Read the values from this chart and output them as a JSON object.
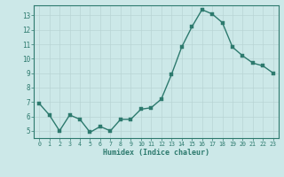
{
  "x": [
    0,
    1,
    2,
    3,
    4,
    5,
    6,
    7,
    8,
    9,
    10,
    11,
    12,
    13,
    14,
    15,
    16,
    17,
    18,
    19,
    20,
    21,
    22,
    23
  ],
  "y": [
    6.9,
    6.1,
    5.0,
    6.1,
    5.8,
    4.9,
    5.3,
    5.0,
    5.8,
    5.8,
    6.5,
    6.6,
    7.2,
    8.9,
    10.8,
    12.2,
    13.4,
    13.1,
    12.5,
    10.8,
    10.2,
    9.7,
    9.5,
    9.0
  ],
  "xlabel": "Humidex (Indice chaleur)",
  "xlim": [
    -0.5,
    23.5
  ],
  "ylim": [
    4.5,
    13.7
  ],
  "yticks": [
    5,
    6,
    7,
    8,
    9,
    10,
    11,
    12,
    13
  ],
  "xticks": [
    0,
    1,
    2,
    3,
    4,
    5,
    6,
    7,
    8,
    9,
    10,
    11,
    12,
    13,
    14,
    15,
    16,
    17,
    18,
    19,
    20,
    21,
    22,
    23
  ],
  "line_color": "#2d7a6e",
  "marker_color": "#2d7a6e",
  "bg_color": "#cce8e8",
  "grid_color": "#b8d4d4",
  "spine_color": "#2d7a6e",
  "tick_label_color": "#2d7a6e",
  "xlabel_color": "#2d7a6e",
  "line_width": 1.0,
  "marker_size": 2.5
}
